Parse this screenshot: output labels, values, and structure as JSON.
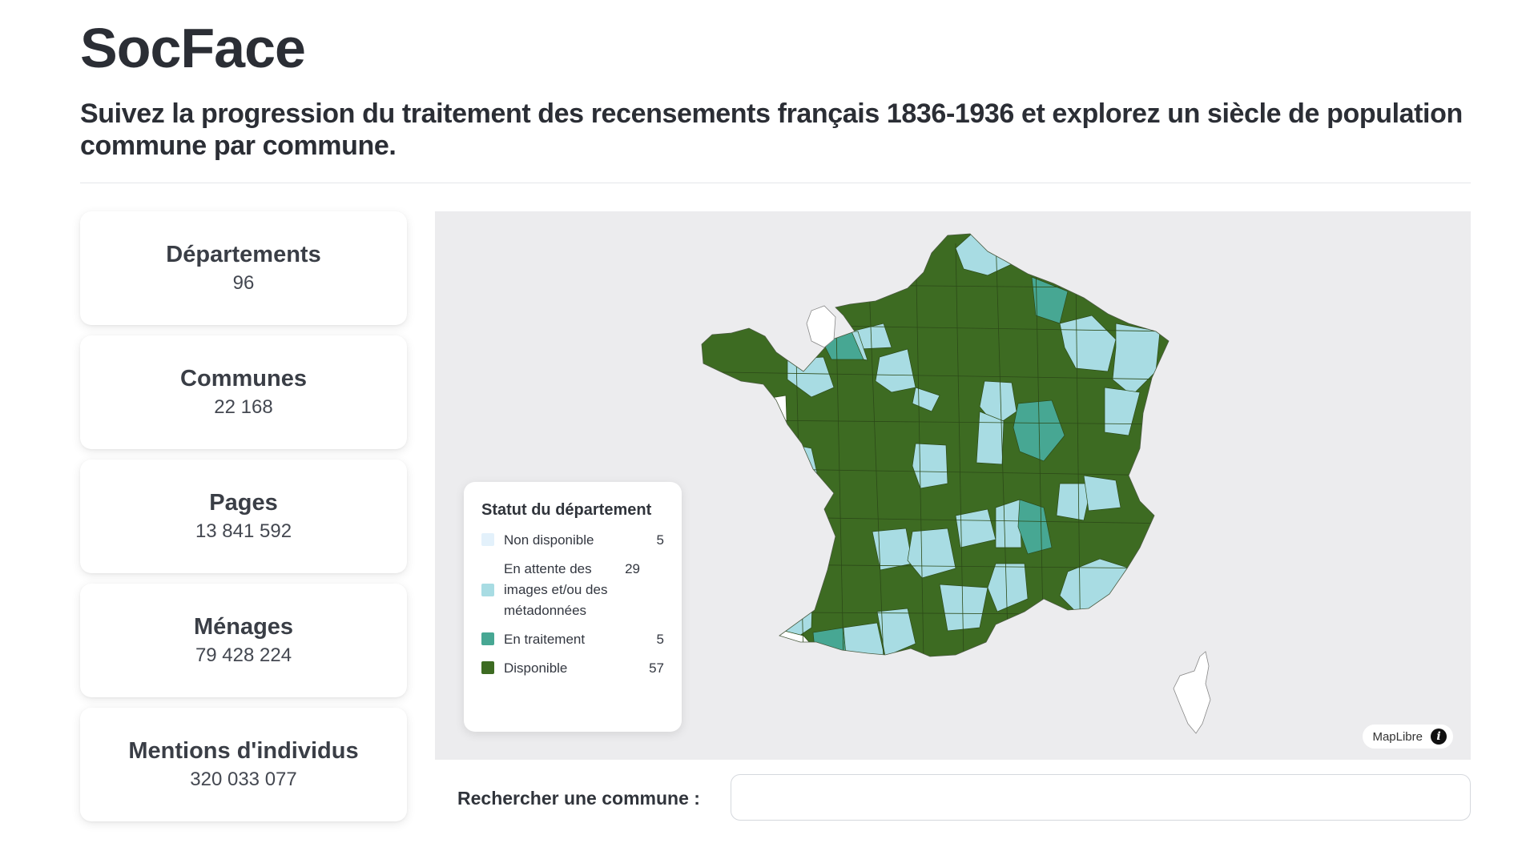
{
  "header": {
    "title": "SocFace",
    "subtitle": "Suivez la progression du traitement des recensements français 1836-1936 et explorez un siècle de population commune par commune."
  },
  "stats": [
    {
      "label": "Départements",
      "value": "96"
    },
    {
      "label": "Communes",
      "value": "22 168"
    },
    {
      "label": "Pages",
      "value": "13 841 592"
    },
    {
      "label": "Ménages",
      "value": "79 428 224"
    },
    {
      "label": "Mentions d'individus",
      "value": "320 033 077"
    }
  ],
  "map": {
    "legend": {
      "title": "Statut du département",
      "items": [
        {
          "label": "Non disponible",
          "count": "5",
          "color": "#e3f1fb"
        },
        {
          "label": "En attente des images et/ou des métadonnées",
          "count": "29",
          "color": "#a8dce3"
        },
        {
          "label": "En traitement",
          "count": "5",
          "color": "#47a793"
        },
        {
          "label": "Disponible",
          "count": "57",
          "color": "#3d6b22"
        }
      ]
    },
    "attribution": "MapLibre",
    "attribution_icon": "info-icon"
  },
  "search": {
    "label": "Rechercher une commune :",
    "placeholder": ""
  }
}
